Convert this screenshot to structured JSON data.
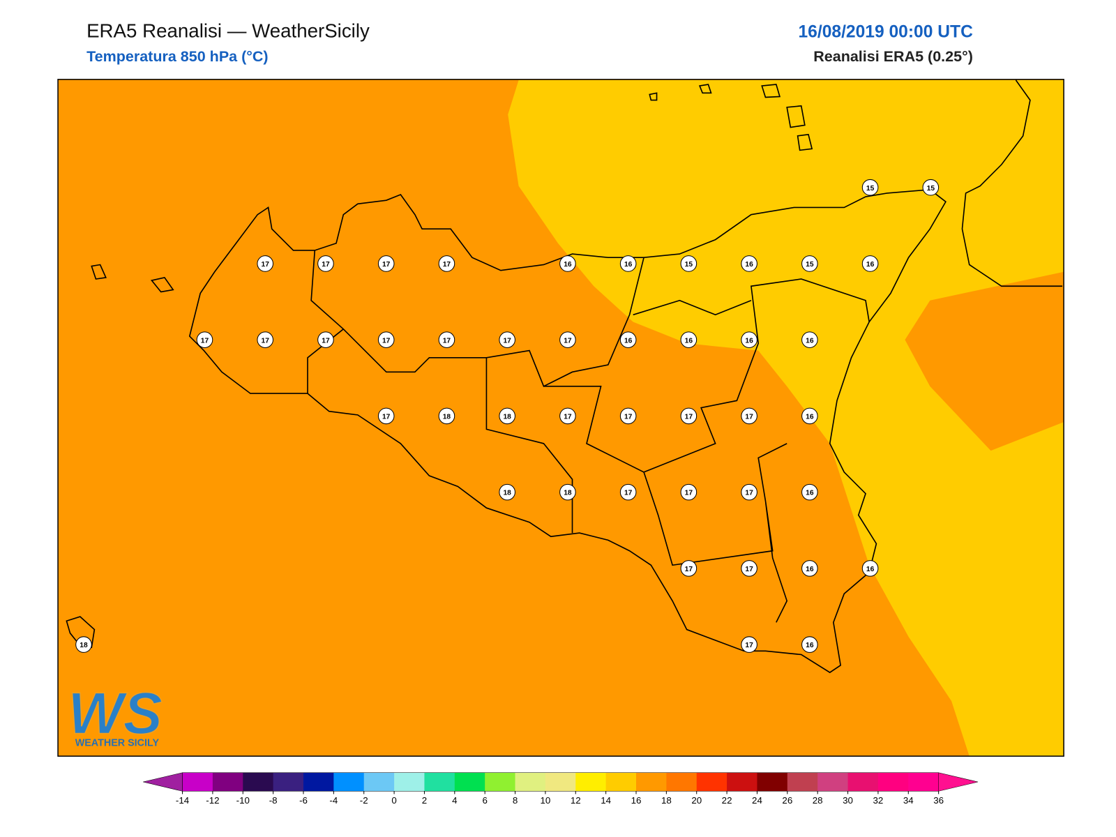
{
  "header": {
    "title": "ERA5 Reanalisi — WeatherSicily",
    "subtitle": "Temperatura 850 hPa (°C)",
    "date": "16/08/2019 00:00 UTC",
    "source": "Reanalisi ERA5 (0.25°)"
  },
  "map": {
    "point_values": [
      [
        null,
        null,
        null,
        null,
        null,
        null,
        null,
        null,
        null,
        null,
        null,
        null,
        null,
        15,
        15
      ],
      [
        null,
        null,
        null,
        17,
        17,
        17,
        17,
        null,
        16,
        16,
        15,
        16,
        15,
        16,
        null
      ],
      [
        null,
        null,
        17,
        17,
        17,
        17,
        17,
        17,
        17,
        16,
        16,
        16,
        16,
        null,
        null
      ],
      [
        null,
        null,
        null,
        null,
        null,
        17,
        18,
        18,
        17,
        17,
        17,
        17,
        16,
        null,
        null
      ],
      [
        null,
        null,
        null,
        null,
        null,
        null,
        null,
        18,
        18,
        17,
        17,
        17,
        16,
        null,
        null
      ],
      [
        null,
        null,
        null,
        null,
        null,
        null,
        null,
        null,
        null,
        null,
        17,
        17,
        16,
        16,
        null
      ],
      [
        18,
        null,
        null,
        null,
        null,
        null,
        null,
        null,
        null,
        null,
        null,
        17,
        16,
        null,
        null
      ]
    ]
  },
  "colorbar": {
    "ticks": [
      -14,
      -12,
      -10,
      -8,
      -6,
      -4,
      -2,
      0,
      2,
      4,
      6,
      8,
      10,
      12,
      14,
      16,
      18,
      20,
      22,
      24,
      26,
      28,
      30,
      32,
      34,
      36
    ],
    "colors": [
      "#c800c8",
      "#800080",
      "#2a0a50",
      "#3a2080",
      "#0018a0",
      "#0090ff",
      "#6cc8f5",
      "#9ef0e8",
      "#20e0a0",
      "#00e050",
      "#90f030",
      "#e0f080",
      "#f0e880",
      "#ffee00",
      "#ffcc00",
      "#ff9900",
      "#ff7700",
      "#ff3300",
      "#cc1010",
      "#800000",
      "#c04050",
      "#d04080",
      "#e81070",
      "#ff0080",
      "#ff0090"
    ],
    "under_color": "#a020a0",
    "over_color": "#ff1090"
  },
  "logo": {
    "text": "WS",
    "subtitle": "WEATHER SICILY"
  }
}
